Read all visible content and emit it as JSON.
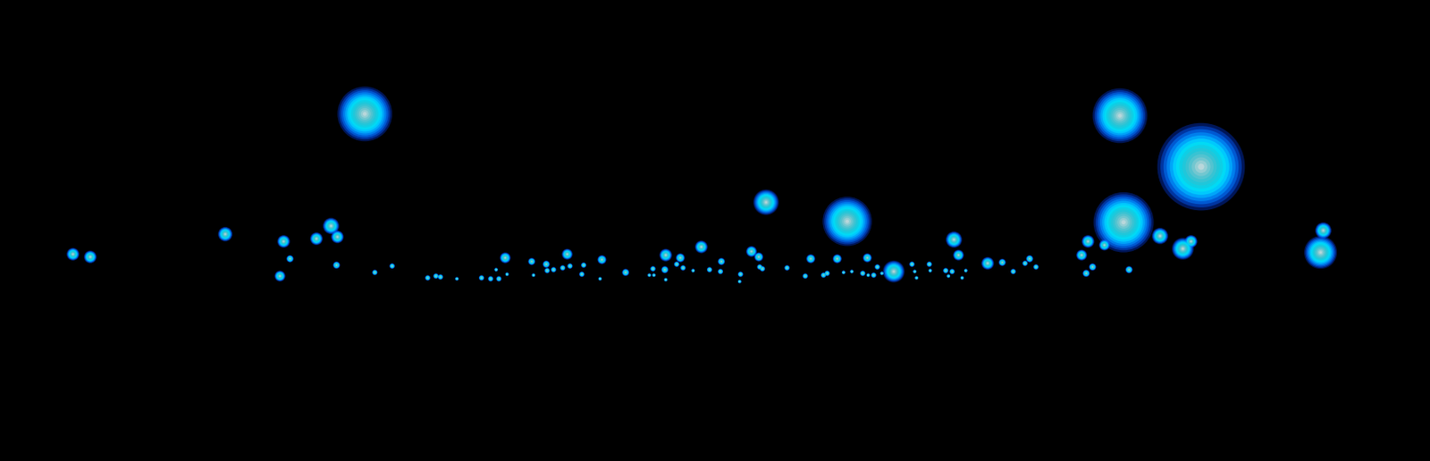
{
  "chart_data": {
    "type": "scatter",
    "color": "#00e5ff",
    "tick_labels": false,
    "grid": false,
    "xlim": [
      0,
      1568
    ],
    "ylim": [
      506,
      0
    ],
    "x": [
      400,
      1228,
      1317,
      840,
      929,
      1232,
      980,
      1448,
      1451,
      1297,
      1272,
      1306,
      1193,
      1211,
      1046,
      1186,
      1051,
      1083,
      769,
      730,
      824,
      832,
      746,
      622,
      554,
      660,
      363,
      370,
      347,
      311,
      247,
      80,
      99,
      307,
      318,
      369,
      889,
      918,
      951,
      1238,
      1198,
      1191,
      1129,
      1136,
      1099,
      1111,
      1124,
      411,
      430,
      469,
      478,
      483,
      501,
      528,
      538,
      547,
      556,
      544,
      583,
      585,
      599,
      600,
      607,
      617,
      625,
      640,
      638,
      658,
      686,
      712,
      716,
      717,
      729,
      730,
      742,
      749,
      760,
      778,
      791,
      790,
      812,
      811,
      833,
      836,
      863,
      883,
      903,
      907,
      925,
      934,
      946,
      952,
      958,
      962,
      967,
      1000,
      1003,
      1005,
      1019,
      1020,
      1037,
      1040,
      1044,
      1055,
      1059
    ],
    "values": [
      125,
      127,
      183,
      222,
      243,
      244,
      298,
      277,
      253,
      273,
      259,
      265,
      265,
      269,
      263,
      280,
      280,
      289,
      271,
      280,
      276,
      282,
      283,
      279,
      283,
      285,
      248,
      260,
      262,
      265,
      257,
      279,
      282,
      303,
      284,
      291,
      284,
      284,
      283,
      296,
      293,
      300,
      284,
      293,
      288,
      298,
      289,
      299,
      292,
      305,
      303,
      304,
      306,
      305,
      306,
      306,
      301,
      296,
      287,
      302,
      290,
      297,
      296,
      294,
      292,
      291,
      301,
      306,
      299,
      302,
      295,
      302,
      296,
      307,
      290,
      294,
      297,
      296,
      287,
      298,
      301,
      309,
      293,
      295,
      294,
      303,
      302,
      300,
      299,
      298,
      300,
      302,
      302,
      293,
      300,
      290,
      298,
      305,
      290,
      297,
      297,
      303,
      298,
      305,
      297
    ],
    "sizes": [
      30,
      30,
      48,
      14,
      27,
      33,
      12,
      18,
      9,
      12,
      9,
      7,
      7,
      6,
      9,
      6,
      6,
      7,
      7,
      7,
      6,
      5,
      5,
      6,
      6,
      5,
      9,
      7,
      7,
      7,
      8,
      7,
      7,
      6,
      4,
      4,
      5,
      5,
      5,
      4,
      4,
      4,
      4,
      3,
      4,
      3,
      3,
      3,
      3,
      3,
      3,
      3,
      2,
      3,
      3,
      3,
      2,
      2,
      4,
      2,
      4,
      3,
      3,
      3,
      3,
      3,
      3,
      2,
      4,
      2,
      3,
      2,
      4,
      2,
      3,
      3,
      2,
      3,
      4,
      3,
      3,
      2,
      3,
      3,
      3,
      3,
      3,
      3,
      2,
      2,
      3,
      2,
      3,
      3,
      2,
      3,
      2,
      2,
      3,
      2,
      3,
      2,
      3,
      2,
      2
    ]
  }
}
